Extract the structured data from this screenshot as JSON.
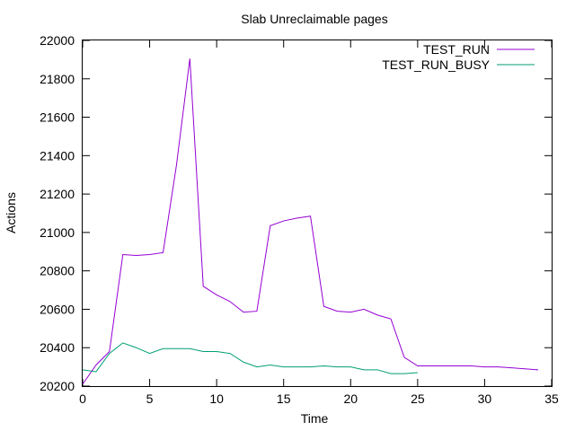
{
  "chart_data": {
    "type": "line",
    "title": "Slab Unreclaimable pages",
    "xlabel": "Time",
    "ylabel": "Actions",
    "xlim": [
      0,
      35
    ],
    "ylim": [
      20200,
      22000
    ],
    "xticks": [
      0,
      5,
      10,
      15,
      20,
      25,
      30,
      35
    ],
    "yticks": [
      20200,
      20400,
      20600,
      20800,
      21000,
      21200,
      21400,
      21600,
      21800,
      22000
    ],
    "legend_position": "top-right",
    "grid": false,
    "series": [
      {
        "name": "TEST_RUN",
        "color": "#9400d3",
        "x": [
          0,
          1,
          2,
          3,
          4,
          5,
          6,
          7,
          8,
          9,
          10,
          11,
          12,
          13,
          14,
          15,
          16,
          17,
          18,
          19,
          20,
          21,
          22,
          23,
          24,
          25,
          26,
          27,
          28,
          29,
          30,
          31,
          32,
          33,
          34
        ],
        "values": [
          20210,
          20310,
          20380,
          20885,
          20880,
          20885,
          20895,
          21350,
          21905,
          20720,
          20675,
          20640,
          20585,
          20590,
          21035,
          21060,
          21075,
          21085,
          20615,
          20590,
          20585,
          20600,
          20570,
          20550,
          20350,
          20305,
          20305,
          20305,
          20305,
          20305,
          20300,
          20300,
          20295,
          20290,
          20285
        ]
      },
      {
        "name": "TEST_RUN_BUSY",
        "color": "#009e73",
        "x": [
          0,
          1,
          2,
          3,
          4,
          5,
          6,
          7,
          8,
          9,
          10,
          11,
          12,
          13,
          14,
          15,
          16,
          17,
          18,
          19,
          20,
          21,
          22,
          23,
          24,
          25
        ],
        "values": [
          20285,
          20275,
          20370,
          20425,
          20400,
          20370,
          20395,
          20395,
          20395,
          20380,
          20380,
          20370,
          20325,
          20300,
          20310,
          20300,
          20300,
          20300,
          20305,
          20300,
          20300,
          20285,
          20285,
          20265,
          20265,
          20270
        ]
      }
    ]
  }
}
